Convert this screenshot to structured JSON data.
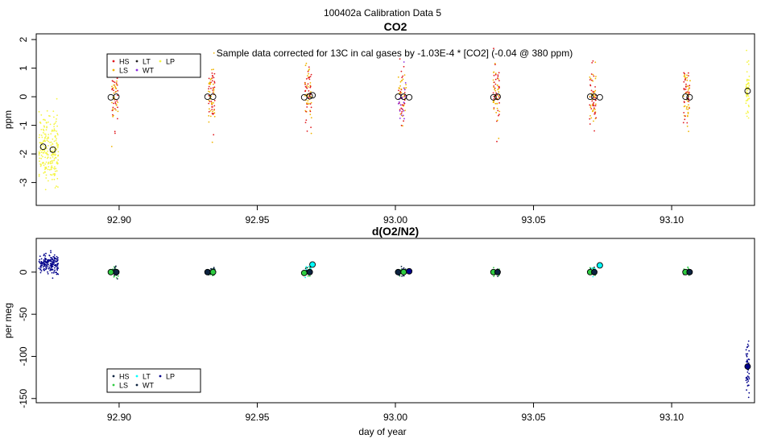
{
  "page_title": "100402a   Calibration Data 5",
  "xlabel": "day of year",
  "legend_labels": [
    "HS",
    "LS",
    "LT",
    "WT",
    "LP"
  ],
  "colors": {
    "HS": "#e0191e",
    "LS": "#f0b400",
    "LT": "#222222",
    "WT": "#8a2be2",
    "LP": "#f5f542",
    "O2_dark": "#0c2340",
    "O2_green": "#2ecc40",
    "O2_lt": "#00ffff",
    "O2_lp": "#00008b"
  },
  "chart_data": [
    {
      "id": "co2",
      "type": "scatter",
      "title": "CO2",
      "annotation": "Sample data corrected for 13C in cal gases by -1.03E-4 * [CO2] (-0.04 @ 380 ppm)",
      "xlabel": "",
      "ylabel": "ppm",
      "xlim": [
        92.87,
        93.13
      ],
      "ylim": [
        -3.8,
        2.2
      ],
      "xticks": [
        92.9,
        92.95,
        93.0,
        93.05,
        93.1
      ],
      "xtick_labels": [
        "92.90",
        "92.95",
        "93.00",
        "93.05",
        "93.10"
      ],
      "yticks": [
        -3,
        -2,
        -1,
        0,
        1,
        2
      ],
      "ytick_labels": [
        "-3",
        "-2",
        "-1",
        "0",
        "1",
        "2"
      ],
      "legend": [
        "HS",
        "LS",
        "LT",
        "WT",
        "LP"
      ],
      "clusters": [
        {
          "x": 92.8745,
          "mean": -1.8,
          "sd": 0.6,
          "n": 220,
          "w": 0.0035,
          "colors": [
            "LP"
          ]
        },
        {
          "x": 92.8985,
          "mean": 0.0,
          "sd": 0.5,
          "n": 60,
          "w": 0.0012,
          "colors": [
            "HS",
            "LS"
          ]
        },
        {
          "x": 92.9335,
          "mean": 0.0,
          "sd": 0.55,
          "n": 70,
          "w": 0.0012,
          "colors": [
            "HS",
            "LS"
          ]
        },
        {
          "x": 92.9685,
          "mean": 0.0,
          "sd": 0.5,
          "n": 70,
          "w": 0.0012,
          "colors": [
            "HS",
            "LS"
          ]
        },
        {
          "x": 93.0025,
          "mean": 0.0,
          "sd": 0.55,
          "n": 80,
          "w": 0.0014,
          "colors": [
            "HS",
            "LS",
            "WT"
          ]
        },
        {
          "x": 93.0365,
          "mean": 0.0,
          "sd": 0.55,
          "n": 70,
          "w": 0.0012,
          "colors": [
            "HS",
            "LS"
          ]
        },
        {
          "x": 93.0715,
          "mean": 0.0,
          "sd": 0.5,
          "n": 70,
          "w": 0.0012,
          "colors": [
            "HS",
            "LS"
          ]
        },
        {
          "x": 93.1055,
          "mean": 0.0,
          "sd": 0.5,
          "n": 70,
          "w": 0.0012,
          "colors": [
            "HS",
            "LS"
          ]
        },
        {
          "x": 93.1275,
          "mean": 0.2,
          "sd": 0.45,
          "n": 50,
          "w": 0.0006,
          "colors": [
            "LP"
          ]
        }
      ],
      "means": [
        {
          "x": 92.8725,
          "y": -1.75
        },
        {
          "x": 92.876,
          "y": -1.85
        },
        {
          "x": 92.897,
          "y": -0.02
        },
        {
          "x": 92.899,
          "y": 0.0
        },
        {
          "x": 92.932,
          "y": 0.0
        },
        {
          "x": 92.934,
          "y": 0.0
        },
        {
          "x": 92.967,
          "y": -0.02
        },
        {
          "x": 92.969,
          "y": 0.02
        },
        {
          "x": 92.97,
          "y": 0.05
        },
        {
          "x": 93.001,
          "y": 0.0
        },
        {
          "x": 93.003,
          "y": 0.0
        },
        {
          "x": 93.005,
          "y": -0.02
        },
        {
          "x": 93.0355,
          "y": -0.02
        },
        {
          "x": 93.037,
          "y": 0.0
        },
        {
          "x": 93.0705,
          "y": 0.0
        },
        {
          "x": 93.072,
          "y": 0.0
        },
        {
          "x": 93.074,
          "y": -0.02
        },
        {
          "x": 93.105,
          "y": 0.0
        },
        {
          "x": 93.1065,
          "y": -0.02
        },
        {
          "x": 93.1275,
          "y": 0.2
        }
      ]
    },
    {
      "id": "o2n2",
      "type": "scatter",
      "title": "d(O2/N2)",
      "xlabel": "day of year",
      "ylabel": "per meg",
      "xlim": [
        92.87,
        93.13
      ],
      "ylim": [
        -155,
        40
      ],
      "xticks": [
        92.9,
        92.95,
        93.0,
        93.05,
        93.1
      ],
      "xtick_labels": [
        "92.90",
        "92.95",
        "93.00",
        "93.05",
        "93.10"
      ],
      "yticks": [
        -150,
        -100,
        -50,
        0
      ],
      "ytick_labels": [
        "-150",
        "-100",
        "-50",
        "0"
      ],
      "legend": [
        "HS",
        "LS",
        "LT",
        "WT",
        "LP"
      ],
      "clusters": [
        {
          "x": 92.8745,
          "mean": 10,
          "sd": 6,
          "n": 180,
          "w": 0.0035,
          "colors": [
            "O2_lp"
          ]
        },
        {
          "x": 92.8985,
          "mean": 0,
          "sd": 3,
          "n": 40,
          "w": 0.0012,
          "colors": [
            "O2_green",
            "O2_dark"
          ]
        },
        {
          "x": 92.9335,
          "mean": 0,
          "sd": 3,
          "n": 40,
          "w": 0.0012,
          "colors": [
            "O2_green",
            "O2_dark"
          ]
        },
        {
          "x": 92.9685,
          "mean": 0,
          "sd": 3.5,
          "n": 40,
          "w": 0.0012,
          "colors": [
            "O2_green",
            "O2_dark",
            "O2_lt"
          ]
        },
        {
          "x": 93.0025,
          "mean": 0,
          "sd": 3,
          "n": 40,
          "w": 0.0014,
          "colors": [
            "O2_green",
            "O2_dark",
            "O2_lp"
          ]
        },
        {
          "x": 93.0365,
          "mean": 0,
          "sd": 2.5,
          "n": 30,
          "w": 0.0012,
          "colors": [
            "O2_green",
            "O2_dark"
          ]
        },
        {
          "x": 93.0715,
          "mean": 0,
          "sd": 3,
          "n": 40,
          "w": 0.0012,
          "colors": [
            "O2_green",
            "O2_dark",
            "O2_lt"
          ]
        },
        {
          "x": 93.1055,
          "mean": 0,
          "sd": 2.5,
          "n": 30,
          "w": 0.0012,
          "colors": [
            "O2_green",
            "O2_dark"
          ]
        },
        {
          "x": 93.1275,
          "mean": -112,
          "sd": 14,
          "n": 50,
          "w": 0.0006,
          "colors": [
            "O2_lp"
          ]
        }
      ],
      "means": [
        {
          "x": 92.897,
          "y": 0,
          "c": "O2_green"
        },
        {
          "x": 92.899,
          "y": 0,
          "c": "O2_dark"
        },
        {
          "x": 92.932,
          "y": 0,
          "c": "O2_dark"
        },
        {
          "x": 92.934,
          "y": 0,
          "c": "O2_green"
        },
        {
          "x": 92.967,
          "y": -1,
          "c": "O2_green"
        },
        {
          "x": 92.969,
          "y": 0,
          "c": "O2_dark"
        },
        {
          "x": 92.97,
          "y": 9,
          "c": "O2_lt"
        },
        {
          "x": 93.001,
          "y": 0,
          "c": "O2_dark"
        },
        {
          "x": 93.003,
          "y": 0,
          "c": "O2_green"
        },
        {
          "x": 93.005,
          "y": 1,
          "c": "O2_lp"
        },
        {
          "x": 93.0355,
          "y": 0,
          "c": "O2_green"
        },
        {
          "x": 93.037,
          "y": 0,
          "c": "O2_dark"
        },
        {
          "x": 93.0705,
          "y": 0,
          "c": "O2_green"
        },
        {
          "x": 93.072,
          "y": 0,
          "c": "O2_dark"
        },
        {
          "x": 93.074,
          "y": 8,
          "c": "O2_lt"
        },
        {
          "x": 93.105,
          "y": 0,
          "c": "O2_green"
        },
        {
          "x": 93.1065,
          "y": 0,
          "c": "O2_dark"
        },
        {
          "x": 93.1275,
          "y": -112,
          "c": "O2_lp"
        }
      ]
    }
  ]
}
